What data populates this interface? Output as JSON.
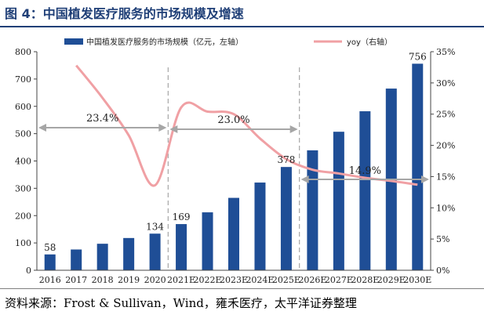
{
  "title": "图 4：中国植发医疗服务的市场规模及增速",
  "source": "资料来源：Frost & Sullivan，Wind，雍禾医疗，太平洋证券整理",
  "colors": {
    "bar": "#1f4e96",
    "line": "#f0a0a4",
    "title": "#1f3f77",
    "arrow": "#a6a6a6",
    "divider": "#a6a6a6"
  },
  "chart_data": {
    "type": "bar",
    "categories": [
      "2016",
      "2017",
      "2018",
      "2019",
      "2020",
      "2021E",
      "2022E",
      "2023E",
      "2024E",
      "2025E",
      "2026E",
      "2027E",
      "2028E",
      "2029E",
      "2030E"
    ],
    "series": [
      {
        "name": "中国植发医疗服务的市场规模（亿元，左轴）",
        "type": "bar",
        "axis": "left",
        "values": [
          58,
          76,
          97,
          118,
          134,
          169,
          212,
          265,
          321,
          378,
          439,
          507,
          582,
          665,
          756
        ]
      },
      {
        "name": "yoy（右轴）",
        "type": "line",
        "axis": "right",
        "values": [
          null,
          32.8,
          27.6,
          21.6,
          13.6,
          26.1,
          25.4,
          25.0,
          21.1,
          17.8,
          16.1,
          15.5,
          14.8,
          14.3,
          13.7
        ]
      }
    ],
    "data_labels": [
      {
        "index": 0,
        "text": "58"
      },
      {
        "index": 4,
        "text": "134"
      },
      {
        "index": 5,
        "text": "169"
      },
      {
        "index": 9,
        "text": "378"
      },
      {
        "index": 14,
        "text": "756"
      }
    ],
    "annotations": [
      {
        "text": "23.4%",
        "from": 0,
        "to": 4
      },
      {
        "text": "23.0%",
        "from": 5,
        "to": 9
      },
      {
        "text": "14.9%",
        "from": 10,
        "to": 14
      }
    ],
    "dividers_after": [
      4,
      9
    ],
    "y_left": {
      "min": 0,
      "max": 800,
      "ticks": [
        "0",
        "100",
        "200",
        "300",
        "400",
        "500",
        "600",
        "700",
        "800"
      ]
    },
    "y_right": {
      "min": 0,
      "max": 35,
      "ticks": [
        "0%",
        "5%",
        "10%",
        "15%",
        "20%",
        "25%",
        "30%",
        "35%"
      ]
    },
    "legend": {
      "position": "top"
    },
    "grid": false
  }
}
